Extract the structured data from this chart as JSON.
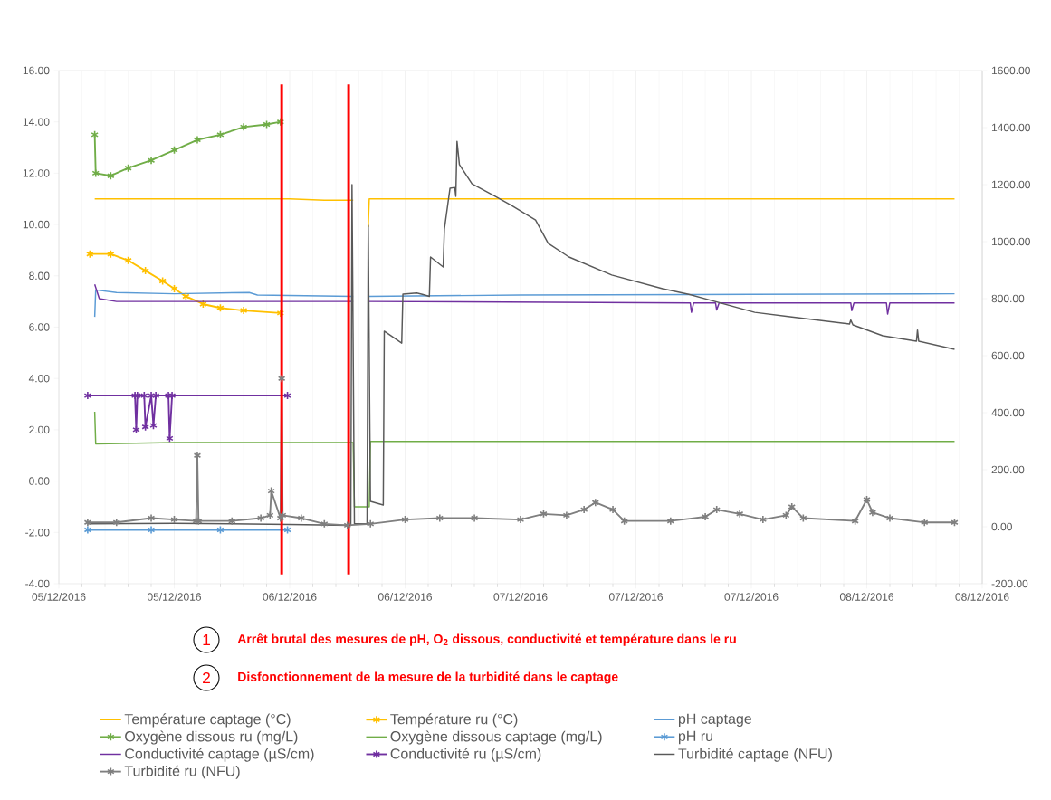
{
  "chart_data": {
    "type": "line",
    "xlim": [
      "2016-12-05T09:36",
      "2016-12-08T14:24"
    ],
    "xticks": [
      {
        "value": "2016-12-05T09:36",
        "label": "05/12/2016"
      },
      {
        "value": "2016-12-05T19:12",
        "label": "05/12/2016"
      },
      {
        "value": "2016-12-06T04:48",
        "label": "06/12/2016"
      },
      {
        "value": "2016-12-06T14:24",
        "label": "06/12/2016"
      },
      {
        "value": "2016-12-07T00:00",
        "label": "07/12/2016"
      },
      {
        "value": "2016-12-07T09:36",
        "label": "07/12/2016"
      },
      {
        "value": "2016-12-07T19:12",
        "label": "07/12/2016"
      },
      {
        "value": "2016-12-08T04:48",
        "label": "08/12/2016"
      },
      {
        "value": "2016-12-08T14:24",
        "label": "08/12/2016"
      }
    ],
    "ylim": [
      -4,
      16
    ],
    "yticks": [
      {
        "value": -4,
        "label": "-4.00"
      },
      {
        "value": -2,
        "label": "-2.00"
      },
      {
        "value": 0,
        "label": "0.00"
      },
      {
        "value": 2,
        "label": "2.00"
      },
      {
        "value": 4,
        "label": "4.00"
      },
      {
        "value": 6,
        "label": "6.00"
      },
      {
        "value": 8,
        "label": "8.00"
      },
      {
        "value": 10,
        "label": "10.00"
      },
      {
        "value": 12,
        "label": "12.00"
      },
      {
        "value": 14,
        "label": "14.00"
      },
      {
        "value": 16,
        "label": "16.00"
      }
    ],
    "y2lim": [
      -200,
      1600
    ],
    "y2ticks": [
      {
        "value": -200,
        "label": "-200.00"
      },
      {
        "value": 0,
        "label": "0.00"
      },
      {
        "value": 200,
        "label": "200.00"
      },
      {
        "value": 400,
        "label": "400.00"
      },
      {
        "value": 600,
        "label": "600.00"
      },
      {
        "value": 800,
        "label": "800.00"
      },
      {
        "value": 1000,
        "label": "1000.00"
      },
      {
        "value": 1200,
        "label": "1200.00"
      },
      {
        "value": 1400,
        "label": "1400.00"
      },
      {
        "value": 1600,
        "label": "1600.00"
      }
    ],
    "grid": "x",
    "legend": "bottom",
    "series": [
      {
        "name": "Température captage (°C)",
        "color": "#ffc000",
        "marker": "none",
        "x": [
          "2016-12-05T12:35",
          "2016-12-05T19:12",
          "2016-12-06T04:48",
          "2016-12-06T07:41",
          "2016-12-06T10:05",
          "2016-12-06T10:34",
          "2016-12-06T11:20",
          "2016-12-06T11:25",
          "2016-12-07T00:00",
          "2016-12-07T19:12",
          "2016-12-08T12:06"
        ],
        "values": [
          11.0,
          11.0,
          11.0,
          10.95,
          10.95,
          null,
          9.9,
          11.0,
          11.0,
          11.0,
          11.0
        ]
      },
      {
        "name": "Température ru (°C)",
        "color": "#ffc000",
        "marker": "cross",
        "x": [
          "2016-12-05T12:11",
          "2016-12-05T13:55",
          "2016-12-05T15:22",
          "2016-12-05T16:48",
          "2016-12-05T18:14",
          "2016-12-05T19:12",
          "2016-12-05T20:10",
          "2016-12-05T21:36",
          "2016-12-05T23:02",
          "2016-12-06T00:58",
          "2016-12-06T04:02"
        ],
        "values": [
          8.85,
          8.85,
          8.6,
          8.2,
          7.8,
          7.5,
          7.2,
          6.9,
          6.75,
          6.65,
          6.55
        ]
      },
      {
        "name": "pH captage",
        "color": "#5b9bd5",
        "marker": "none",
        "x": [
          "2016-12-05T12:35",
          "2016-12-05T12:40",
          "2016-12-05T14:24",
          "2016-12-05T19:12",
          "2016-12-06T01:26",
          "2016-12-06T02:07",
          "2016-12-06T10:05",
          "2016-12-06T10:34",
          "2016-12-06T11:20",
          "2016-12-07T00:00",
          "2016-12-07T19:12",
          "2016-12-08T12:06"
        ],
        "values": [
          6.4,
          7.45,
          7.35,
          7.3,
          7.35,
          7.25,
          7.2,
          null,
          7.2,
          7.25,
          7.28,
          7.3
        ]
      },
      {
        "name": "Oxygène dissous ru (mg/L)",
        "color": "#70ad47",
        "marker": "cross",
        "x": [
          "2016-12-05T12:35",
          "2016-12-05T12:40",
          "2016-12-05T13:55",
          "2016-12-05T15:22",
          "2016-12-05T17:17",
          "2016-12-05T19:12",
          "2016-12-05T21:07",
          "2016-12-05T23:02",
          "2016-12-06T00:58",
          "2016-12-06T02:53",
          "2016-12-06T04:02"
        ],
        "values": [
          13.5,
          12.0,
          11.9,
          12.2,
          12.5,
          12.9,
          13.3,
          13.5,
          13.8,
          13.9,
          14.0
        ]
      },
      {
        "name": "Oxygène dissous captage (mg/L)",
        "color": "#70ad47",
        "marker": "none",
        "x": [
          "2016-12-05T12:35",
          "2016-12-05T12:40",
          "2016-12-05T19:12",
          "2016-12-06T10:05",
          "2016-12-06T10:11",
          "2016-12-06T11:25",
          "2016-12-06T11:31",
          "2016-12-07T09:36",
          "2016-12-08T12:06"
        ],
        "values": [
          2.7,
          1.45,
          1.5,
          1.5,
          -1.0,
          -1.0,
          1.55,
          1.55,
          1.55
        ]
      },
      {
        "name": "pH ru",
        "color": "#5b9bd5",
        "marker": "cross",
        "x": [
          "2016-12-05T12:00",
          "2016-12-05T17:17",
          "2016-12-05T23:02",
          "2016-12-06T04:37"
        ],
        "values": [
          -1.9,
          -1.9,
          -1.9,
          -1.9
        ]
      },
      {
        "name": "Conductivité captage (µS/cm)",
        "color": "#7030a0",
        "marker": "none",
        "axis": "y2",
        "x": [
          "2016-12-05T12:35",
          "2016-12-05T12:58",
          "2016-12-05T14:24",
          "2016-12-06T10:05",
          "2016-12-06T10:34",
          "2016-12-06T11:20",
          "2016-12-07T14:07",
          "2016-12-07T14:13",
          "2016-12-07T14:24",
          "2016-12-07T16:13",
          "2016-12-07T16:19",
          "2016-12-07T16:31",
          "2016-12-08T03:28",
          "2016-12-08T03:33",
          "2016-12-08T03:44",
          "2016-12-08T06:26",
          "2016-12-08T06:32",
          "2016-12-08T06:43",
          "2016-12-08T12:06"
        ],
        "values": [
          850,
          800,
          790,
          790,
          null,
          790,
          785,
          752,
          785,
          785,
          760,
          785,
          785,
          758,
          785,
          785,
          746,
          785,
          785
        ]
      },
      {
        "name": "Conductivité ru (µS/cm)",
        "color": "#7030a0",
        "marker": "cross",
        "axis": "y2",
        "x": [
          "2016-12-05T12:00",
          "2016-12-05T15:56",
          "2016-12-05T16:02",
          "2016-12-05T16:08",
          "2016-12-05T16:42",
          "2016-12-05T16:48",
          "2016-12-05T17:17",
          "2016-12-05T17:28",
          "2016-12-05T17:40",
          "2016-12-05T18:43",
          "2016-12-05T18:49",
          "2016-12-05T19:01",
          "2016-12-06T04:37"
        ],
        "values": [
          460,
          460,
          340,
          460,
          460,
          350,
          460,
          355,
          460,
          460,
          310,
          460,
          460
        ]
      },
      {
        "name": "Turbidité captage (NFU)",
        "color": "#595959",
        "marker": "none",
        "axis": "y2",
        "x": [
          "2016-12-05T12:00",
          "2016-12-05T19:12",
          "2016-12-06T04:48",
          "2016-12-06T09:53",
          "2016-12-06T09:59",
          "2016-12-06T10:11",
          "2016-12-06T11:14",
          "2016-12-06T11:20",
          "2016-12-06T11:31",
          "2016-12-06T12:35",
          "2016-12-06T12:40",
          "2016-12-06T14:07",
          "2016-12-06T14:13",
          "2016-12-06T15:22",
          "2016-12-06T15:50",
          "2016-12-06T16:25",
          "2016-12-06T16:31",
          "2016-12-06T17:34",
          "2016-12-06T17:40",
          "2016-12-06T18:08",
          "2016-12-06T18:32",
          "2016-12-06T18:37",
          "2016-12-06T18:43",
          "2016-12-06T18:55",
          "2016-12-06T19:58",
          "2016-12-06T21:53",
          "2016-12-06T23:14",
          "2016-12-07T01:15",
          "2016-12-07T02:18",
          "2016-12-07T04:02",
          "2016-12-07T07:35",
          "2016-12-07T11:49",
          "2016-12-07T13:55",
          "2016-12-07T19:29",
          "2016-12-07T22:16",
          "2016-12-08T03:22",
          "2016-12-08T03:28",
          "2016-12-08T03:39",
          "2016-12-08T06:08",
          "2016-12-08T08:56",
          "2016-12-08T09:01",
          "2016-12-08T09:07",
          "2016-12-08T12:06"
        ],
        "values": [
          10,
          12,
          8,
          5,
          1200,
          10,
          10,
          1057,
          89,
          76,
          686,
          644,
          816,
          820,
          815,
          808,
          946,
          911,
          1044,
          1187,
          1190,
          1159,
          1352,
          1270,
          1203,
          1159,
          1127,
          1076,
          994,
          946,
          883,
          835,
          816,
          752,
          737,
          711,
          725,
          708,
          670,
          651,
          690,
          651,
          622
        ]
      },
      {
        "name": "Turbidité ru (NFU)",
        "color": "#7f7f7f",
        "marker": "cross",
        "axis": "y2",
        "x": [
          "2016-12-05T12:00",
          "2016-12-05T14:24",
          "2016-12-05T17:17",
          "2016-12-05T19:12",
          "2016-12-05T21:01",
          "2016-12-05T21:07",
          "2016-12-05T21:13",
          "2016-12-06T00:00",
          "2016-12-06T02:24",
          "2016-12-06T03:10",
          "2016-12-06T03:16",
          "2016-12-06T04:02",
          "2016-12-06T04:08",
          "2016-12-06T04:13",
          "2016-12-06T05:46",
          "2016-12-06T07:41",
          "2016-12-06T09:36",
          "2016-12-06T11:31",
          "2016-12-06T14:24",
          "2016-12-06T17:17",
          "2016-12-06T20:10",
          "2016-12-07T00:00",
          "2016-12-07T01:55",
          "2016-12-07T03:50",
          "2016-12-07T05:17",
          "2016-12-07T06:14",
          "2016-12-07T07:41",
          "2016-12-07T08:38",
          "2016-12-07T12:29",
          "2016-12-07T15:22",
          "2016-12-07T16:19",
          "2016-12-07T18:14",
          "2016-12-07T20:10",
          "2016-12-07T22:05",
          "2016-12-07T22:34",
          "2016-12-07T23:31",
          "2016-12-08T03:50",
          "2016-12-08T04:48",
          "2016-12-08T05:17",
          "2016-12-08T06:43",
          "2016-12-08T09:36",
          "2016-12-08T12:06"
        ],
        "values": [
          15,
          15,
          30,
          25,
          20,
          250,
          20,
          20,
          30,
          40,
          125,
          30,
          520,
          40,
          30,
          10,
          5,
          10,
          25,
          30,
          30,
          25,
          45,
          40,
          60,
          85,
          60,
          20,
          20,
          35,
          60,
          45,
          25,
          40,
          70,
          30,
          20,
          95,
          50,
          30,
          15,
          15
        ]
      }
    ],
    "ref_lines": [
      {
        "axis": "x",
        "value": "2016-12-06T04:08",
        "label": "1",
        "color": "#ff0000"
      },
      {
        "axis": "x",
        "value": "2016-12-06T09:42",
        "label": "2",
        "color": "#ff0000"
      }
    ],
    "annotations": [
      "Arrêt brutal des mesures de pH, O$_{2}$ dissous, conductivité et température dans le ru",
      "Disfonctionnement de la mesure de la turbidité dans le captage"
    ]
  }
}
